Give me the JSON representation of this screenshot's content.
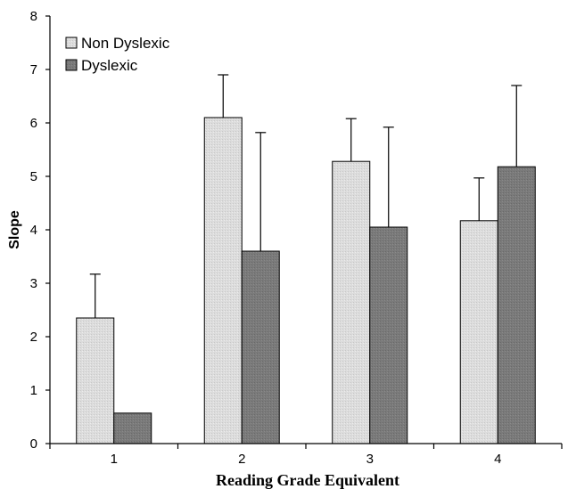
{
  "chart_data": {
    "type": "bar",
    "title": "",
    "xlabel": "Reading Grade Equivalent",
    "ylabel": "Slope",
    "categories": [
      "1",
      "2",
      "3",
      "4"
    ],
    "ylim": [
      0,
      8
    ],
    "yticks": [
      "0",
      "1",
      "2",
      "3",
      "4",
      "5",
      "6",
      "7",
      "8"
    ],
    "grid": false,
    "legend_position": "top-left",
    "series": [
      {
        "name": "Non Dyslexic",
        "values": [
          2.35,
          6.1,
          5.28,
          4.17
        ],
        "error_upper": [
          0.82,
          0.8,
          0.8,
          0.8
        ],
        "color": "#d9d9d9"
      },
      {
        "name": "Dyslexic",
        "values": [
          0.57,
          3.6,
          4.05,
          5.18
        ],
        "error_upper": [
          0.0,
          2.22,
          1.87,
          1.52
        ],
        "color": "#7f7f7f"
      }
    ]
  }
}
